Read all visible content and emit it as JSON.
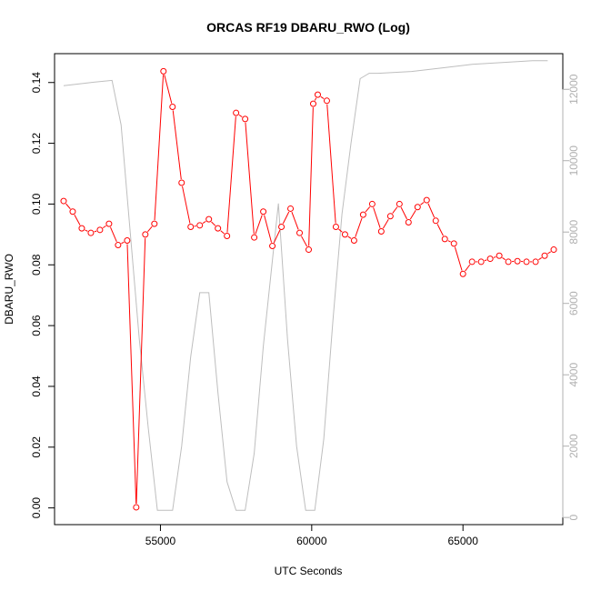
{
  "chart_data": {
    "type": "line",
    "title": "ORCAS RF19 DBARU_RWO (Log)",
    "xlabel": "UTC Seconds",
    "ylabel": "DBARU_RWO",
    "xlim": [
      51500,
      68300
    ],
    "ylim": [
      -0.0055,
      0.1495
    ],
    "y2lim": [
      -200,
      13000
    ],
    "x_ticks": [
      55000,
      60000,
      65000
    ],
    "y_ticks": [
      0.0,
      0.02,
      0.04,
      0.06,
      0.08,
      0.1,
      0.12,
      0.14
    ],
    "y2_ticks": [
      0,
      2000,
      4000,
      6000,
      8000,
      10000,
      12000
    ],
    "colors": {
      "primary": "#ff0000",
      "secondary": "#bebebe"
    },
    "series": [
      {
        "axis": "left",
        "style": "line+points",
        "x": [
          51800,
          52100,
          52400,
          52700,
          53000,
          53300,
          53600,
          53900,
          54200,
          54500,
          54800,
          55100,
          55400,
          55700,
          56000,
          56300,
          56600,
          56900,
          57200,
          57500,
          57800,
          58100,
          58400,
          58700,
          59000,
          59300,
          59600,
          59900,
          60050,
          60200,
          60500,
          60800,
          61100,
          61400,
          61700,
          62000,
          62300,
          62600,
          62900,
          63200,
          63500,
          63800,
          64100,
          64400,
          64700,
          65000,
          65300,
          65600,
          65900,
          66200,
          66500,
          66800,
          67100,
          67400,
          67700,
          68000
        ],
        "y": [
          0.101,
          0.0975,
          0.092,
          0.0905,
          0.0915,
          0.0935,
          0.0865,
          0.088,
          0.0002,
          0.09,
          0.0935,
          0.1437,
          0.132,
          0.107,
          0.0925,
          0.093,
          0.095,
          0.092,
          0.0895,
          0.13,
          0.128,
          0.089,
          0.0975,
          0.0862,
          0.0925,
          0.0985,
          0.0905,
          0.085,
          0.133,
          0.136,
          0.134,
          0.0925,
          0.09,
          0.088,
          0.0965,
          0.1,
          0.091,
          0.096,
          0.1,
          0.094,
          0.099,
          0.1013,
          0.0945,
          0.0885,
          0.087,
          0.077,
          0.081,
          0.081,
          0.082,
          0.083,
          0.081,
          0.0812,
          0.081,
          0.081,
          0.083,
          0.085
        ]
      },
      {
        "axis": "right",
        "style": "line",
        "x": [
          51800,
          52800,
          53400,
          53700,
          54000,
          54300,
          54600,
          54900,
          55100,
          55400,
          55700,
          56000,
          56300,
          56600,
          56900,
          57200,
          57500,
          57800,
          58100,
          58400,
          58900,
          59200,
          59500,
          59800,
          60100,
          60400,
          60700,
          61000,
          61300,
          61600,
          61900,
          62200,
          63300,
          64300,
          65300,
          66300,
          67300,
          67800
        ],
        "y": [
          12100,
          12200,
          12250,
          11000,
          8000,
          5000,
          2500,
          200,
          200,
          200,
          2000,
          4500,
          6300,
          6300,
          3500,
          1000,
          200,
          200,
          1800,
          4800,
          8800,
          5000,
          2000,
          200,
          200,
          2200,
          5500,
          8500,
          10500,
          12300,
          12450,
          12450,
          12500,
          12600,
          12700,
          12750,
          12800,
          12800
        ]
      }
    ]
  }
}
